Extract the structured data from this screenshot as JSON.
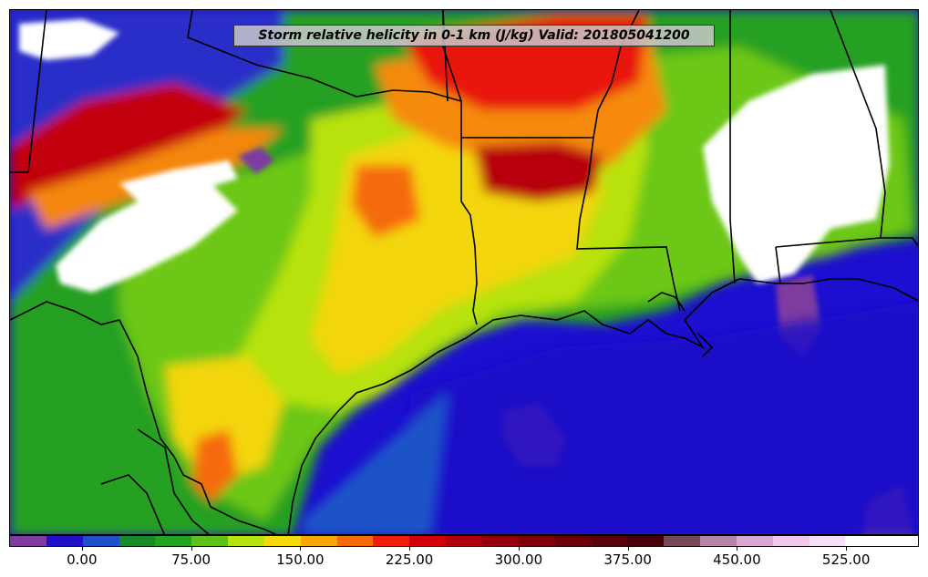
{
  "title": "Storm relative helicity in 0-1 km (J/kg) Valid: 201805041200",
  "colorbar": {
    "min": -50,
    "max": 575,
    "step": 25,
    "colors": [
      "#7e3ba0",
      "#2010c8",
      "#1f50c8",
      "#178a2a",
      "#1fa51f",
      "#5dc11a",
      "#b4e30f",
      "#f4d90b",
      "#f7a808",
      "#f56a08",
      "#f21e0c",
      "#d2000c",
      "#b0000e",
      "#96000c",
      "#800008",
      "#6c0008",
      "#5a0008",
      "#46000a",
      "#78485a",
      "#b885a8",
      "#d9a8d5",
      "#f0c8ef",
      "#f7e0f7",
      "#ffffff",
      "#ffffff"
    ],
    "tick_labels": [
      "0.00",
      "75.00",
      "150.00",
      "225.00",
      "300.00",
      "375.00",
      "450.00",
      "525.00"
    ],
    "tick_values": [
      0,
      75,
      150,
      225,
      300,
      375,
      450,
      525
    ]
  },
  "map_colors": {
    "ocean_base": "#1c0fd0",
    "boundary": "#000000"
  }
}
